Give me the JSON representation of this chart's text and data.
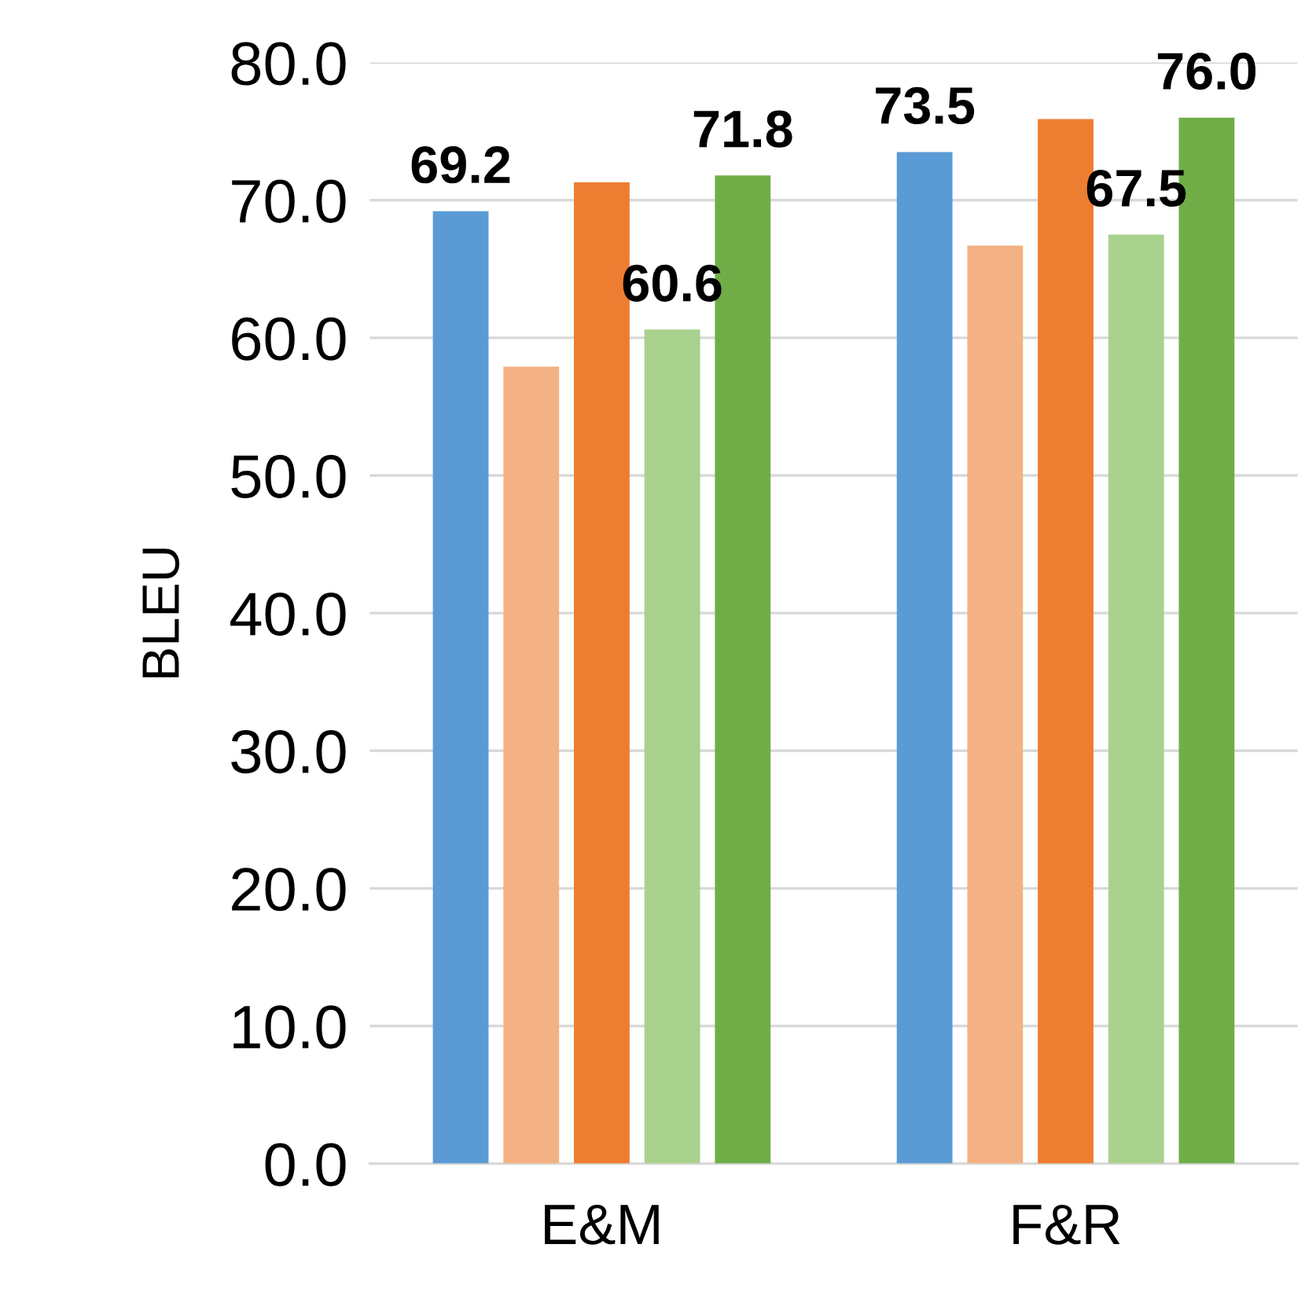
{
  "chart_data": {
    "type": "bar",
    "ylabel": "BLEU",
    "categories": [
      "E&M",
      "F&R"
    ],
    "series": [
      {
        "color": "#5b9bd5",
        "values": [
          69.2,
          73.5
        ],
        "value_labels": [
          "69.2",
          "73.5"
        ]
      },
      {
        "color": "#f4b183",
        "values": [
          57.9,
          66.7
        ],
        "value_labels": [
          null,
          null
        ]
      },
      {
        "color": "#ed7d31",
        "values": [
          71.3,
          75.9
        ],
        "value_labels": [
          null,
          null
        ]
      },
      {
        "color": "#a9d18e",
        "values": [
          60.6,
          67.5
        ],
        "value_labels": [
          "60.6",
          "67.5"
        ]
      },
      {
        "color": "#70ad47",
        "values": [
          71.8,
          76.0
        ],
        "value_labels": [
          "71.8",
          "76.0"
        ]
      }
    ],
    "ylim": [
      0,
      80
    ],
    "yticks": [
      {
        "value": 0,
        "label": "0.0"
      },
      {
        "value": 10,
        "label": "10.0"
      },
      {
        "value": 20,
        "label": "20.0"
      },
      {
        "value": 30,
        "label": "30.0"
      },
      {
        "value": 40,
        "label": "40.0"
      },
      {
        "value": 50,
        "label": "50.0"
      },
      {
        "value": 60,
        "label": "60.0"
      },
      {
        "value": 70,
        "label": "70.0"
      },
      {
        "value": 80,
        "label": "80.0"
      }
    ],
    "grid": "y",
    "legend": false
  }
}
